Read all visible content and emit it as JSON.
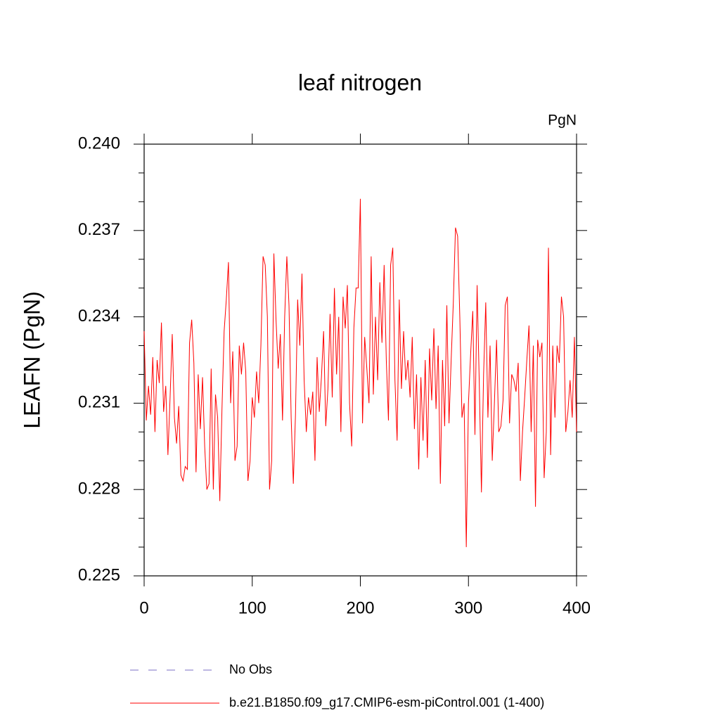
{
  "chart_data": {
    "type": "line",
    "title": "leaf nitrogen",
    "units": "PgN",
    "y_label": "LEAFN  (PgN)",
    "xlim": [
      0,
      400
    ],
    "xticks": [
      0,
      100,
      200,
      300,
      400
    ],
    "ylim": [
      0.225,
      0.24
    ],
    "yticks": [
      {
        "value": 0.24,
        "label": "0.240"
      },
      0.237,
      0.234,
      0.231,
      0.228,
      0.225
    ],
    "yminorticks": [
      0.239,
      0.238,
      0.236,
      0.235,
      0.233,
      0.232,
      0.23,
      0.229,
      0.227,
      0.226
    ],
    "series": [
      {
        "name": "No Obs",
        "color": "#7b6fc4",
        "dash": true,
        "x": [],
        "values": []
      },
      {
        "name": "b.e21.B1850.f09_g17.CMIP6-esm-piControl.001 (1-400)",
        "color": "#ff0000",
        "dash": false,
        "x": [
          0,
          2,
          4,
          6,
          8,
          10,
          12,
          14,
          16,
          18,
          20,
          22,
          24,
          26,
          28,
          30,
          32,
          34,
          36,
          38,
          40,
          42,
          44,
          46,
          48,
          50,
          52,
          54,
          56,
          58,
          60,
          62,
          64,
          66,
          68,
          70,
          72,
          74,
          76,
          78,
          80,
          82,
          84,
          86,
          88,
          90,
          92,
          94,
          96,
          98,
          100,
          102,
          104,
          106,
          108,
          110,
          112,
          114,
          116,
          118,
          120,
          122,
          124,
          126,
          128,
          130,
          132,
          134,
          136,
          138,
          140,
          142,
          144,
          146,
          148,
          150,
          152,
          154,
          156,
          158,
          160,
          162,
          164,
          166,
          168,
          170,
          172,
          174,
          176,
          178,
          180,
          182,
          184,
          186,
          188,
          190,
          192,
          194,
          196,
          198,
          200,
          202,
          204,
          206,
          208,
          210,
          212,
          214,
          216,
          218,
          220,
          222,
          224,
          226,
          228,
          230,
          232,
          234,
          236,
          238,
          240,
          242,
          244,
          246,
          248,
          250,
          252,
          254,
          256,
          258,
          260,
          262,
          264,
          266,
          268,
          270,
          272,
          274,
          276,
          278,
          280,
          282,
          284,
          286,
          288,
          290,
          292,
          294,
          296,
          298,
          300,
          302,
          304,
          306,
          308,
          310,
          312,
          314,
          316,
          318,
          320,
          322,
          324,
          326,
          328,
          330,
          332,
          334,
          336,
          338,
          340,
          342,
          344,
          346,
          348,
          350,
          352,
          354,
          356,
          358,
          360,
          362,
          364,
          366,
          368,
          370,
          372,
          374,
          376,
          378,
          380,
          382,
          384,
          386,
          388,
          390,
          392,
          394,
          396,
          398,
          400
        ],
        "values": [
          0.2335,
          0.2304,
          0.2316,
          0.2306,
          0.2326,
          0.23,
          0.2325,
          0.2317,
          0.2338,
          0.2307,
          0.2316,
          0.2292,
          0.2312,
          0.2334,
          0.2305,
          0.2296,
          0.2309,
          0.2285,
          0.2283,
          0.2288,
          0.2287,
          0.2331,
          0.2339,
          0.2324,
          0.2286,
          0.232,
          0.2301,
          0.2319,
          0.2295,
          0.228,
          0.2282,
          0.2322,
          0.228,
          0.2313,
          0.2305,
          0.2276,
          0.2308,
          0.2335,
          0.2346,
          0.2359,
          0.231,
          0.2328,
          0.229,
          0.2295,
          0.233,
          0.232,
          0.2331,
          0.2321,
          0.2283,
          0.229,
          0.2312,
          0.2305,
          0.2321,
          0.231,
          0.233,
          0.2361,
          0.2358,
          0.234,
          0.228,
          0.229,
          0.2362,
          0.2339,
          0.2322,
          0.2334,
          0.2304,
          0.234,
          0.2361,
          0.2344,
          0.2305,
          0.2282,
          0.2306,
          0.2346,
          0.233,
          0.2355,
          0.2318,
          0.23,
          0.2312,
          0.2306,
          0.2314,
          0.229,
          0.2326,
          0.2307,
          0.2319,
          0.2335,
          0.2302,
          0.2315,
          0.2341,
          0.2312,
          0.235,
          0.232,
          0.234,
          0.23,
          0.2347,
          0.2336,
          0.2351,
          0.231,
          0.2295,
          0.2336,
          0.235,
          0.235,
          0.2381,
          0.2303,
          0.2333,
          0.2322,
          0.231,
          0.2361,
          0.2313,
          0.234,
          0.2318,
          0.2352,
          0.2331,
          0.2358,
          0.2325,
          0.2304,
          0.2358,
          0.2364,
          0.2318,
          0.2297,
          0.2346,
          0.2315,
          0.2335,
          0.2318,
          0.2325,
          0.2312,
          0.2333,
          0.2301,
          0.232,
          0.2287,
          0.2319,
          0.2297,
          0.2325,
          0.2291,
          0.2329,
          0.2311,
          0.2336,
          0.2308,
          0.233,
          0.2282,
          0.2325,
          0.2302,
          0.2344,
          0.2303,
          0.2325,
          0.2345,
          0.2371,
          0.2368,
          0.234,
          0.2305,
          0.231,
          0.226,
          0.231,
          0.2327,
          0.2342,
          0.2299,
          0.2351,
          0.2317,
          0.2279,
          0.232,
          0.2345,
          0.2305,
          0.233,
          0.229,
          0.231,
          0.2332,
          0.23,
          0.2302,
          0.2311,
          0.2344,
          0.2347,
          0.2303,
          0.232,
          0.2318,
          0.2314,
          0.2324,
          0.2283,
          0.23,
          0.2312,
          0.2325,
          0.2337,
          0.23,
          0.233,
          0.2274,
          0.2332,
          0.2326,
          0.2331,
          0.2284,
          0.23,
          0.2364,
          0.2292,
          0.233,
          0.2305,
          0.233,
          0.2324,
          0.2347,
          0.234,
          0.23,
          0.2307,
          0.2318,
          0.2305,
          0.2333,
          0.23
        ]
      }
    ]
  }
}
